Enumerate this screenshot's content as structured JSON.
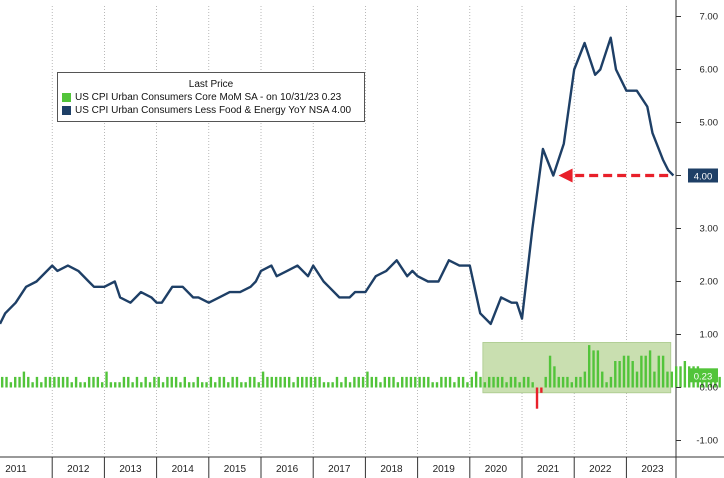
{
  "chart_data": {
    "type": "line+bar",
    "legend_title": "Last Price",
    "legend_placement": "top-left",
    "series": [
      {
        "name": "US CPI Urban Consumers Core MoM SA -  on 10/31/23 0.23",
        "kind": "bar",
        "color": "#52c43a",
        "last_value": "0.23",
        "x_start": 2011.0,
        "x_step": 0.0833,
        "values": [
          0.2,
          0.2,
          0.1,
          0.2,
          0.2,
          0.3,
          0.2,
          0.1,
          0.2,
          0.1,
          0.2,
          0.2,
          0.2,
          0.2,
          0.2,
          0.2,
          0.1,
          0.2,
          0.1,
          0.1,
          0.2,
          0.2,
          0.2,
          0.1,
          0.3,
          0.1,
          0.1,
          0.1,
          0.2,
          0.2,
          0.1,
          0.2,
          0.1,
          0.2,
          0.1,
          0.2,
          0.2,
          0.1,
          0.2,
          0.2,
          0.2,
          0.1,
          0.2,
          0.1,
          0.1,
          0.2,
          0.1,
          0.1,
          0.2,
          0.1,
          0.2,
          0.2,
          0.1,
          0.2,
          0.2,
          0.1,
          0.1,
          0.2,
          0.2,
          0.1,
          0.3,
          0.2,
          0.2,
          0.2,
          0.2,
          0.2,
          0.2,
          0.1,
          0.2,
          0.2,
          0.2,
          0.2,
          0.2,
          0.2,
          0.1,
          0.1,
          0.1,
          0.2,
          0.1,
          0.2,
          0.1,
          0.2,
          0.2,
          0.2,
          0.3,
          0.2,
          0.2,
          0.1,
          0.2,
          0.2,
          0.2,
          0.1,
          0.2,
          0.2,
          0.2,
          0.2,
          0.2,
          0.2,
          0.2,
          0.1,
          0.1,
          0.2,
          0.2,
          0.2,
          0.1,
          0.2,
          0.2,
          0.1,
          0.2,
          0.3,
          0.2,
          0.1,
          0.2,
          0.2,
          0.2,
          0.2,
          0.1,
          0.2,
          0.2,
          0.1,
          0.2,
          0.2,
          0.1,
          -0.4,
          -0.1,
          0.2,
          0.6,
          0.4,
          0.2,
          0.2,
          0.2,
          0.1,
          0.2,
          0.2,
          0.3,
          0.8,
          0.7,
          0.7,
          0.3,
          0.1,
          0.2,
          0.5,
          0.5,
          0.6,
          0.6,
          0.5,
          0.3,
          0.6,
          0.6,
          0.7,
          0.3,
          0.6,
          0.6,
          0.3,
          0.3,
          0.4,
          0.4,
          0.5,
          0.4,
          0.4,
          0.4,
          0.2,
          0.2,
          0.2,
          0.3,
          0.2
        ]
      },
      {
        "name": "US CPI Urban Consumers Less Food & Energy YoY NSA 4.00",
        "kind": "line",
        "color": "#1e3f66",
        "last_value": "4.00",
        "points": [
          [
            2011.0,
            1.2
          ],
          [
            2011.1,
            1.4
          ],
          [
            2011.3,
            1.6
          ],
          [
            2011.5,
            1.9
          ],
          [
            2011.7,
            2.0
          ],
          [
            2011.9,
            2.2
          ],
          [
            2012.0,
            2.3
          ],
          [
            2012.1,
            2.2
          ],
          [
            2012.3,
            2.3
          ],
          [
            2012.5,
            2.2
          ],
          [
            2012.7,
            2.0
          ],
          [
            2012.8,
            1.9
          ],
          [
            2013.0,
            1.9
          ],
          [
            2013.2,
            2.0
          ],
          [
            2013.3,
            1.7
          ],
          [
            2013.5,
            1.6
          ],
          [
            2013.7,
            1.8
          ],
          [
            2013.9,
            1.7
          ],
          [
            2014.0,
            1.6
          ],
          [
            2014.1,
            1.6
          ],
          [
            2014.3,
            1.9
          ],
          [
            2014.5,
            1.9
          ],
          [
            2014.7,
            1.7
          ],
          [
            2014.8,
            1.7
          ],
          [
            2015.0,
            1.6
          ],
          [
            2015.2,
            1.7
          ],
          [
            2015.4,
            1.8
          ],
          [
            2015.6,
            1.8
          ],
          [
            2015.8,
            1.9
          ],
          [
            2015.9,
            2.0
          ],
          [
            2016.0,
            2.2
          ],
          [
            2016.2,
            2.3
          ],
          [
            2016.3,
            2.1
          ],
          [
            2016.5,
            2.2
          ],
          [
            2016.7,
            2.3
          ],
          [
            2016.9,
            2.1
          ],
          [
            2017.0,
            2.3
          ],
          [
            2017.2,
            2.0
          ],
          [
            2017.3,
            1.9
          ],
          [
            2017.5,
            1.7
          ],
          [
            2017.7,
            1.7
          ],
          [
            2017.8,
            1.8
          ],
          [
            2018.0,
            1.8
          ],
          [
            2018.2,
            2.1
          ],
          [
            2018.4,
            2.2
          ],
          [
            2018.6,
            2.4
          ],
          [
            2018.8,
            2.1
          ],
          [
            2018.9,
            2.2
          ],
          [
            2019.0,
            2.1
          ],
          [
            2019.2,
            2.0
          ],
          [
            2019.4,
            2.0
          ],
          [
            2019.6,
            2.4
          ],
          [
            2019.8,
            2.3
          ],
          [
            2019.9,
            2.3
          ],
          [
            2020.0,
            2.3
          ],
          [
            2020.2,
            1.4
          ],
          [
            2020.4,
            1.2
          ],
          [
            2020.6,
            1.7
          ],
          [
            2020.8,
            1.6
          ],
          [
            2020.9,
            1.6
          ],
          [
            2021.0,
            1.3
          ],
          [
            2021.2,
            3.0
          ],
          [
            2021.4,
            4.5
          ],
          [
            2021.6,
            4.0
          ],
          [
            2021.8,
            4.6
          ],
          [
            2022.0,
            6.0
          ],
          [
            2022.2,
            6.5
          ],
          [
            2022.4,
            5.9
          ],
          [
            2022.5,
            6.0
          ],
          [
            2022.7,
            6.6
          ],
          [
            2022.8,
            6.0
          ],
          [
            2023.0,
            5.6
          ],
          [
            2023.2,
            5.6
          ],
          [
            2023.4,
            5.3
          ],
          [
            2023.5,
            4.8
          ],
          [
            2023.7,
            4.3
          ],
          [
            2023.8,
            4.1
          ],
          [
            2023.9,
            4.0
          ]
        ]
      }
    ],
    "y_ticks": [
      "7.00",
      "6.00",
      "5.00",
      "4.00",
      "3.00",
      "2.00",
      "1.00",
      "0.00",
      "-1.00"
    ],
    "ylim": [
      -1.2,
      7.3
    ],
    "x_ticks": [
      "2011",
      "2012",
      "2013",
      "2014",
      "2015",
      "2016",
      "2017",
      "2018",
      "2019",
      "2020",
      "2021",
      "2022",
      "2023"
    ],
    "xlim": [
      2011.0,
      2023.95
    ],
    "grid": "vertical dotted",
    "annotations": {
      "line_value_label": "4.00",
      "bar_value_label": "0.23",
      "arrow": {
        "from_x": 2023.8,
        "to_x": 2021.7,
        "y": 4.0,
        "color": "#e8202a",
        "style": "dashed"
      },
      "highlight_box": {
        "x0": 2020.25,
        "x1": 2023.85,
        "y0": -0.1,
        "y1": 0.85,
        "color": "#c9dfb0"
      }
    }
  }
}
